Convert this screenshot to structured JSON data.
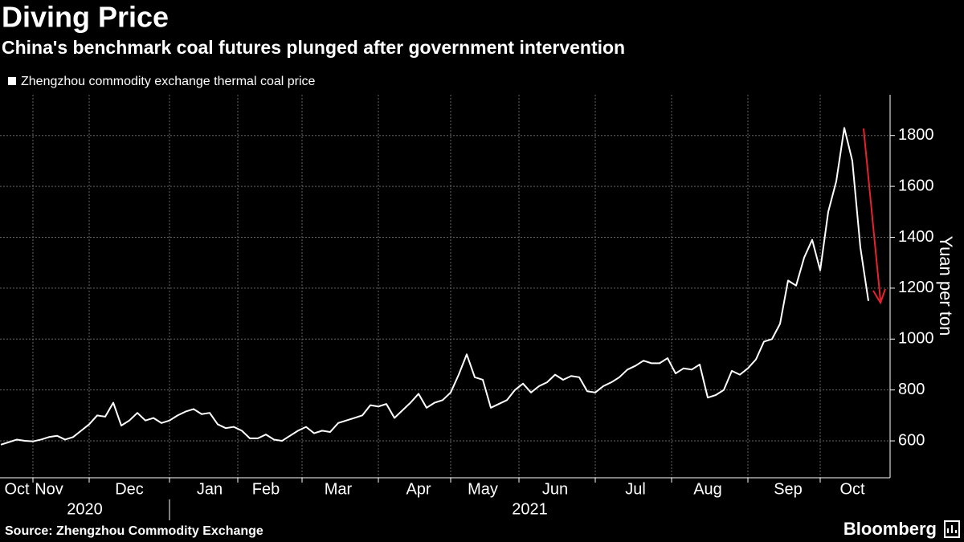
{
  "chart_data": {
    "type": "line",
    "title": "Diving Price",
    "subtitle": "China's benchmark coal futures plunged after government intervention",
    "y_axis_label": "Yuan per ton",
    "source": "Source: Zhengzhou Commodity Exchange",
    "logo": "Bloomberg",
    "year_labels": [
      "2020",
      "2021"
    ],
    "categories": [
      null,
      null,
      "Oct",
      null,
      null,
      null,
      "Nov",
      null,
      null,
      null,
      null,
      null,
      null,
      null,
      null,
      null,
      "Dec",
      null,
      null,
      null,
      null,
      null,
      null,
      null,
      null,
      null,
      "Jan",
      null,
      null,
      null,
      null,
      null,
      null,
      "Feb",
      null,
      null,
      null,
      null,
      null,
      null,
      null,
      null,
      "Mar",
      null,
      null,
      null,
      null,
      null,
      null,
      null,
      null,
      null,
      "Apr",
      null,
      null,
      null,
      null,
      null,
      null,
      null,
      "May",
      null,
      null,
      null,
      null,
      null,
      null,
      null,
      null,
      "Jun",
      null,
      null,
      null,
      null,
      null,
      null,
      null,
      null,
      null,
      "Jul",
      null,
      null,
      null,
      null,
      null,
      null,
      null,
      null,
      "Aug",
      null,
      null,
      null,
      null,
      null,
      null,
      null,
      null,
      null,
      "Sep",
      null,
      null,
      null,
      null,
      null,
      null,
      null,
      "Oct",
      null,
      null
    ],
    "series": [
      {
        "name": "Zhengzhou commodity exchange thermal coal price",
        "color": "#ffffff",
        "values": [
          585,
          595,
          605,
          600,
          598,
          605,
          615,
          620,
          605,
          615,
          640,
          665,
          700,
          695,
          750,
          660,
          680,
          710,
          680,
          690,
          670,
          680,
          700,
          715,
          725,
          705,
          710,
          665,
          650,
          655,
          640,
          610,
          610,
          625,
          605,
          600,
          620,
          640,
          655,
          630,
          640,
          635,
          670,
          680,
          690,
          700,
          740,
          735,
          745,
          690,
          720,
          750,
          785,
          730,
          750,
          760,
          790,
          860,
          940,
          850,
          840,
          730,
          745,
          760,
          800,
          825,
          790,
          815,
          830,
          860,
          840,
          855,
          850,
          795,
          790,
          815,
          830,
          850,
          880,
          895,
          915,
          905,
          905,
          925,
          865,
          885,
          880,
          900,
          770,
          780,
          800,
          875,
          860,
          885,
          920,
          990,
          1000,
          1060,
          1230,
          1210,
          1320,
          1390,
          1270,
          1500,
          1620,
          1830,
          1700,
          1360,
          1150
        ]
      }
    ],
    "ylim": [
      455,
      1960
    ],
    "yticks": [
      600,
      800,
      1000,
      1200,
      1400,
      1600,
      1800
    ],
    "grid": true,
    "arrow_color": "#e8212f"
  }
}
